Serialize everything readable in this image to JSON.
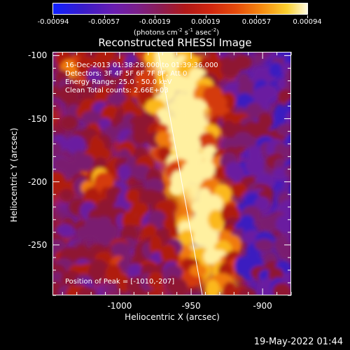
{
  "colorbar": {
    "tick_labels": [
      "-0.00094",
      "-0.00057",
      "-0.00019",
      "0.00019",
      "0.00057",
      "0.00094"
    ],
    "units_text": "(photons cm",
    "units_exp1": "-2",
    "units_mid1": " s",
    "units_exp2": "-1",
    "units_mid2": " asec",
    "units_exp3": "-2",
    "units_close": ")"
  },
  "plot": {
    "title": "Reconstructed RHESSI Image",
    "xlabel": "Heliocentric X (arcsec)",
    "ylabel": "Heliocentric Y (arcsec)",
    "xticks": [
      "-1000",
      "-950",
      "-900"
    ],
    "yticks": [
      "-100",
      "-150",
      "-200",
      "-250"
    ],
    "xlim": [
      -1047,
      -880
    ],
    "ylim": [
      -290,
      -97
    ]
  },
  "annotations": {
    "time_range": "16-Dec-2013 01:38:28.000 to 01:39:36.000",
    "detectors": "Detectors: 3F 4F 5F 6F 7F 8F, Att 0",
    "energy": "Energy Range: 25.0 - 50.0 keV",
    "clean": "Clean     Total counts: 2.66E+03",
    "peak": "Position of Peak = [-1010,-207]"
  },
  "footer": {
    "timestamp": "19-May-2022 01:44"
  },
  "colors": {
    "background": "#000000",
    "axis": "#ffffff",
    "limb_line": "#ffffff"
  }
}
